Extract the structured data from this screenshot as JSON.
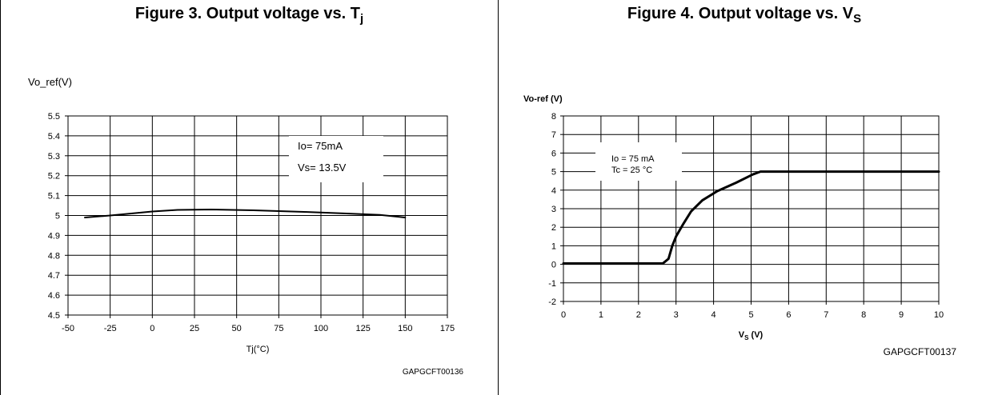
{
  "figures": [
    {
      "title": "Figure 3. Output voltage vs. T",
      "title_sub": "j"
    },
    {
      "title": "Figure 4. Output voltage vs. V",
      "title_sub": "S"
    }
  ],
  "chart_data": [
    {
      "type": "line",
      "ylabel": "Vo_ref(V)",
      "xlabel": "Tj(°C)",
      "code": "GAPGCFT00136",
      "xlim": [
        -50,
        175
      ],
      "ylim": [
        4.5,
        5.5
      ],
      "x_ticks": [
        -50,
        -25,
        0,
        25,
        50,
        75,
        100,
        125,
        150,
        175
      ],
      "y_ticks": [
        4.5,
        4.6,
        4.7,
        4.8,
        4.9,
        5,
        5.1,
        5.2,
        5.3,
        5.4,
        5.5
      ],
      "x_tick_labels": [
        "-50",
        "-25",
        "0",
        "25",
        "50",
        "75",
        "100",
        "125",
        "150",
        "175"
      ],
      "y_tick_labels": [
        "4.5",
        "4.6",
        "4.7",
        "4.8",
        "4.9",
        "5",
        "5.1",
        "5.2",
        "5.3",
        "5.4",
        "5.5"
      ],
      "grid": true,
      "annotation": [
        "Io= 75mA",
        "Vs= 13.5V"
      ],
      "line_color": "#000000",
      "series": [
        {
          "x": [
            -40,
            -25,
            0,
            15,
            35,
            60,
            90,
            115,
            135,
            150
          ],
          "y": [
            4.99,
            5.0,
            5.02,
            5.028,
            5.03,
            5.026,
            5.018,
            5.01,
            5.003,
            4.99
          ]
        }
      ]
    },
    {
      "type": "line",
      "ylabel": "Vo-ref (V)",
      "xlabel_main": "V",
      "xlabel_sub": "S",
      "xlabel_unit": " (V)",
      "code": "GAPGCFT00137",
      "xlim": [
        0,
        10
      ],
      "ylim": [
        -2,
        8
      ],
      "x_ticks": [
        0,
        1,
        2,
        3,
        4,
        5,
        6,
        7,
        8,
        9,
        10
      ],
      "y_ticks": [
        -2,
        -1,
        0,
        1,
        2,
        3,
        4,
        5,
        6,
        7,
        8
      ],
      "x_tick_labels": [
        "0",
        "1",
        "2",
        "3",
        "4",
        "5",
        "6",
        "7",
        "8",
        "9",
        "10"
      ],
      "y_tick_labels": [
        "-2",
        "-1",
        "0",
        "1",
        "2",
        "3",
        "4",
        "5",
        "6",
        "7",
        "8"
      ],
      "grid": true,
      "annotation": [
        "Io = 75 mA",
        "Tc = 25 °C"
      ],
      "line_color": "#000000",
      "series": [
        {
          "x": [
            0,
            2.65,
            2.8,
            2.9,
            3.0,
            3.2,
            3.4,
            3.7,
            4.1,
            4.6,
            5.05,
            5.25,
            10
          ],
          "y": [
            0.05,
            0.05,
            0.3,
            1.0,
            1.5,
            2.2,
            2.85,
            3.45,
            3.95,
            4.4,
            4.85,
            5.0,
            5.0
          ]
        }
      ]
    }
  ]
}
